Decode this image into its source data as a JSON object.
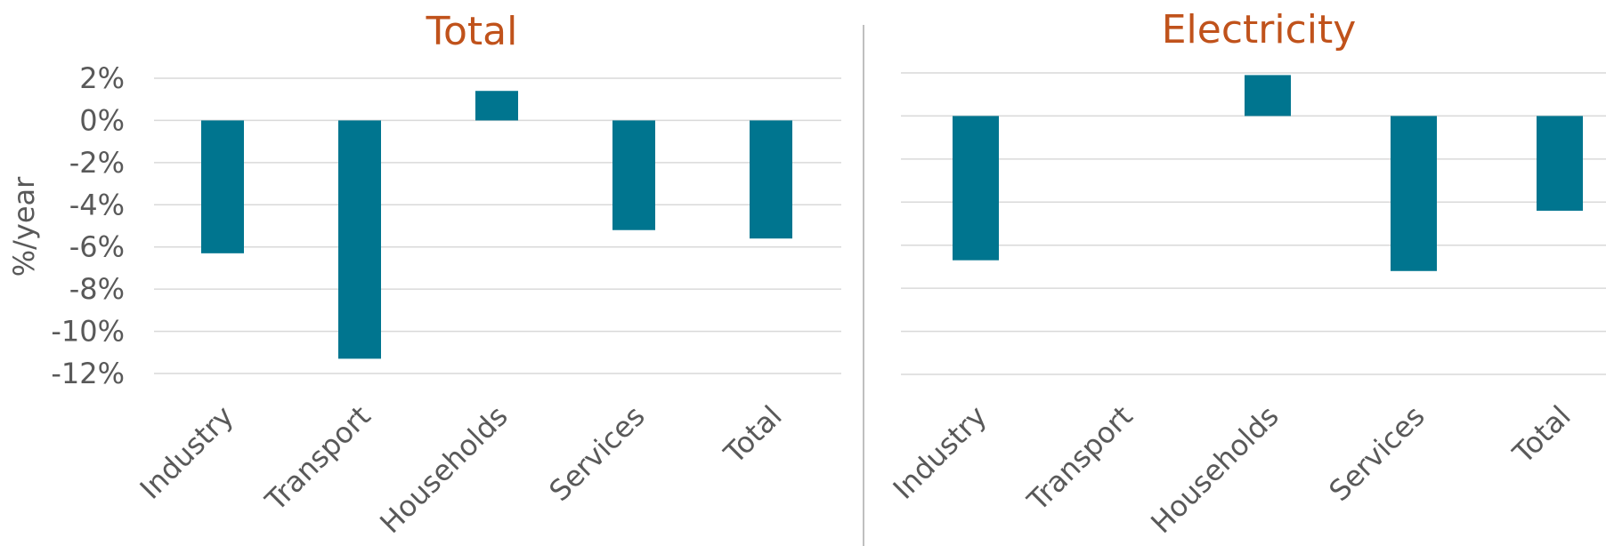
{
  "chart_data": [
    {
      "type": "bar",
      "title": "Total",
      "ylabel": "%/year",
      "categories": [
        "Industry",
        "Transport",
        "Households",
        "Services",
        "Total"
      ],
      "values": [
        -6.3,
        -11.3,
        1.4,
        -5.2,
        -5.6
      ],
      "ylim": [
        -12,
        2
      ],
      "yticks": [
        "2%",
        "0%",
        "-2%",
        "-4%",
        "-6%",
        "-8%",
        "-10%",
        "-12%"
      ],
      "grid": true,
      "bar_color": "#00758f"
    },
    {
      "type": "bar",
      "title": "Electricity",
      "categories": [
        "Industry",
        "Transport",
        "Households",
        "Services",
        "Total"
      ],
      "values": [
        -6.7,
        null,
        1.9,
        -7.2,
        -4.4
      ],
      "ylim": [
        -12,
        2
      ],
      "grid": true,
      "bar_color": "#00758f"
    }
  ]
}
